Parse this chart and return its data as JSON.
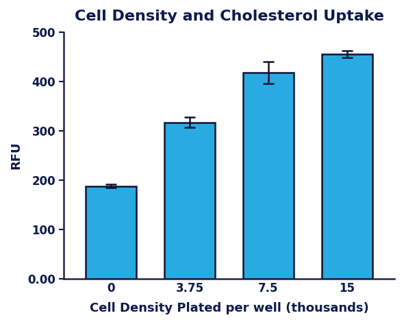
{
  "title": "Cell Density and Cholesterol Uptake",
  "xlabel": "Cell Density Plated per well (thousands)",
  "ylabel": "RFU",
  "categories": [
    "0",
    "3.75",
    "7.5",
    "15"
  ],
  "x_positions": [
    0,
    1,
    2,
    3
  ],
  "values": [
    188,
    317,
    418,
    455
  ],
  "errors": [
    4,
    10,
    22,
    7
  ],
  "bar_color": "#29ABE2",
  "bar_edge_color": "#111133",
  "error_color": "#111133",
  "ylim": [
    0,
    500
  ],
  "yticks": [
    0,
    100,
    200,
    300,
    400,
    500
  ],
  "ytick_labels": [
    "0.00",
    "100",
    "200",
    "300",
    "400",
    "500"
  ],
  "title_color": "#0D1B4B",
  "label_color": "#0D1B4B",
  "tick_color": "#0D1B4B",
  "title_fontsize": 16,
  "label_fontsize": 13,
  "tick_fontsize": 12,
  "bar_width": 0.65,
  "background_color": "#FFFFFF"
}
